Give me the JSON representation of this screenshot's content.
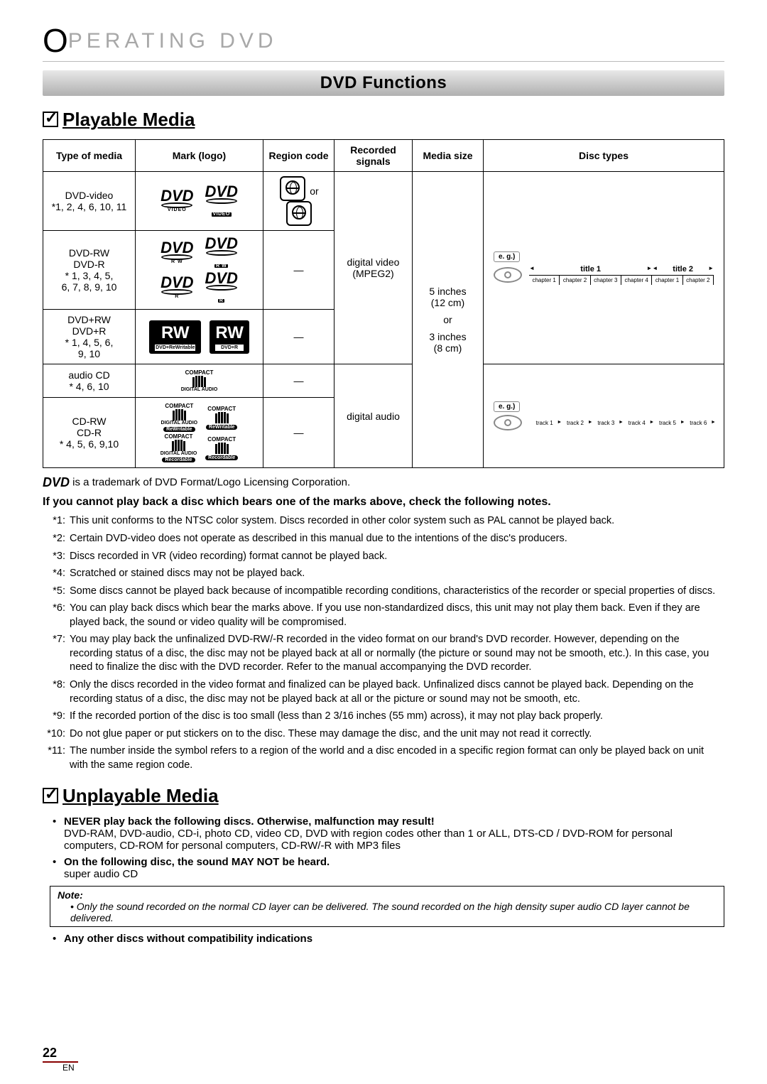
{
  "header": {
    "title_prefix": "O",
    "title_rest": "PERATING DVD"
  },
  "banner": "DVD Functions",
  "playable_section": "Playable Media",
  "unplayable_section": "Unplayable Media",
  "table": {
    "headers": [
      "Type of media",
      "Mark (logo)",
      "Region code",
      "Recorded signals",
      "Media size",
      "Disc types"
    ],
    "col_widths": [
      "130px",
      "180px",
      "100px",
      "110px",
      "100px",
      "auto"
    ],
    "rows": {
      "r1": {
        "type": "DVD-video",
        "sub": "*1, 2, 4, 6, 10, 11"
      },
      "r2": {
        "type1": "DVD-RW",
        "type2": "DVD-R",
        "sub1": "* 1, 3, 4, 5,",
        "sub2": "6, 7, 8, 9, 10"
      },
      "r3": {
        "type1": "DVD+RW",
        "type2": "DVD+R",
        "sub1": "* 1, 4, 5, 6,",
        "sub2": "9, 10"
      },
      "r4": {
        "type": "audio CD",
        "sub": "* 4, 6, 10"
      },
      "r5": {
        "type1": "CD-RW",
        "type2": "CD-R",
        "sub": "* 4, 5, 6, 9,10"
      }
    },
    "region_or": "or",
    "region_dash": "—",
    "signals": {
      "video1": "digital video",
      "video2": "(MPEG2)",
      "audio": "digital audio"
    },
    "size": {
      "l1": "5 inches",
      "l2": "(12 cm)",
      "l3": "or",
      "l4": "3 inches",
      "l5": "(8 cm)"
    },
    "diagram_video": {
      "eg": "e. g.)",
      "titles": [
        "title 1",
        "title 2"
      ],
      "chapters": [
        "chapter 1",
        "chapter 2",
        "chapter 3",
        "chapter 4",
        "chapter 1",
        "chapter 2"
      ]
    },
    "diagram_audio": {
      "eg": "e. g.)",
      "tracks": [
        "track 1",
        "track 2",
        "track 3",
        "track 4",
        "track 5",
        "track 6"
      ]
    }
  },
  "logos": {
    "dvd": "DVD",
    "video": "VIDEO",
    "rw": "R W",
    "r": "R",
    "rw_big": "RW",
    "rw_sub1": "DVD+ReWritable",
    "rw_sub2": "DVD+R",
    "compact": "COMPACT",
    "disc": "disc",
    "digital_audio": "DIGITAL AUDIO",
    "rewritable": "ReWritable",
    "recordable": "Recordable"
  },
  "trademark": " is a trademark of DVD Format/Logo Licensing Corporation.",
  "notes_heading": "If you cannot play back a disc which bears one of the marks above, check the following notes.",
  "notes": [
    {
      "n": "*1:",
      "t": "This unit conforms to the NTSC color system. Discs recorded in other color system such as PAL cannot be played back."
    },
    {
      "n": "*2:",
      "t": "Certain DVD-video does not operate as described in this manual due to the intentions of the disc's producers."
    },
    {
      "n": "*3:",
      "t": "Discs recorded in VR (video recording) format cannot be played back."
    },
    {
      "n": "*4:",
      "t": "Scratched or stained discs may not be played back."
    },
    {
      "n": "*5:",
      "t": "Some discs cannot be played back because of incompatible recording conditions, characteristics of the recorder or special properties of discs."
    },
    {
      "n": "*6:",
      "t": "You can play back discs which bear the marks above. If you use non-standardized discs, this unit may not play them back. Even if they are played back, the sound or video quality will be compromised."
    },
    {
      "n": "*7:",
      "t": "You may play back the unfinalized DVD-RW/-R recorded in the video format on our brand's DVD recorder. However, depending on the recording status of a disc, the disc may not be played back at all or normally (the picture or sound may not be smooth, etc.). In this case, you need to finalize the disc with the DVD recorder. Refer to the manual accompanying the DVD recorder."
    },
    {
      "n": "*8:",
      "t": "Only the discs recorded in the video format and finalized can be played back. Unfinalized discs cannot be played back. Depending on the recording status of a disc, the disc may not be played back at all or the picture or sound may not be smooth, etc."
    },
    {
      "n": "*9:",
      "t": "If the recorded portion of the disc is too small (less than 2 3/16 inches (55 mm) across), it may not play back properly."
    },
    {
      "n": "*10:",
      "t": "Do not glue paper or put stickers on to the disc. These may damage the disc, and the unit may not read it correctly."
    },
    {
      "n": "*11:",
      "t": "The number inside the symbol refers to a region of the world and a disc encoded in a specific region format can only be played back on unit with the same region code."
    }
  ],
  "unplayable": {
    "i1_bold": "NEVER play back the following discs. Otherwise, malfunction may result!",
    "i1_text": "DVD-RAM, DVD-audio, CD-i, photo CD, video CD, DVD with region codes other than 1 or ALL, DTS-CD / DVD-ROM for personal computers, CD-ROM for personal computers, CD-RW/-R with MP3 files",
    "i2_bold": "On the following disc, the sound MAY NOT be heard.",
    "i2_text": "super audio CD",
    "note_label": "Note:",
    "note_text": "Only the sound recorded on the normal CD layer can be delivered. The sound recorded on the high density super audio CD layer cannot be delivered.",
    "i3_bold": "Any other discs without compatibility indications"
  },
  "footer": {
    "page": "22",
    "lang": "EN"
  }
}
